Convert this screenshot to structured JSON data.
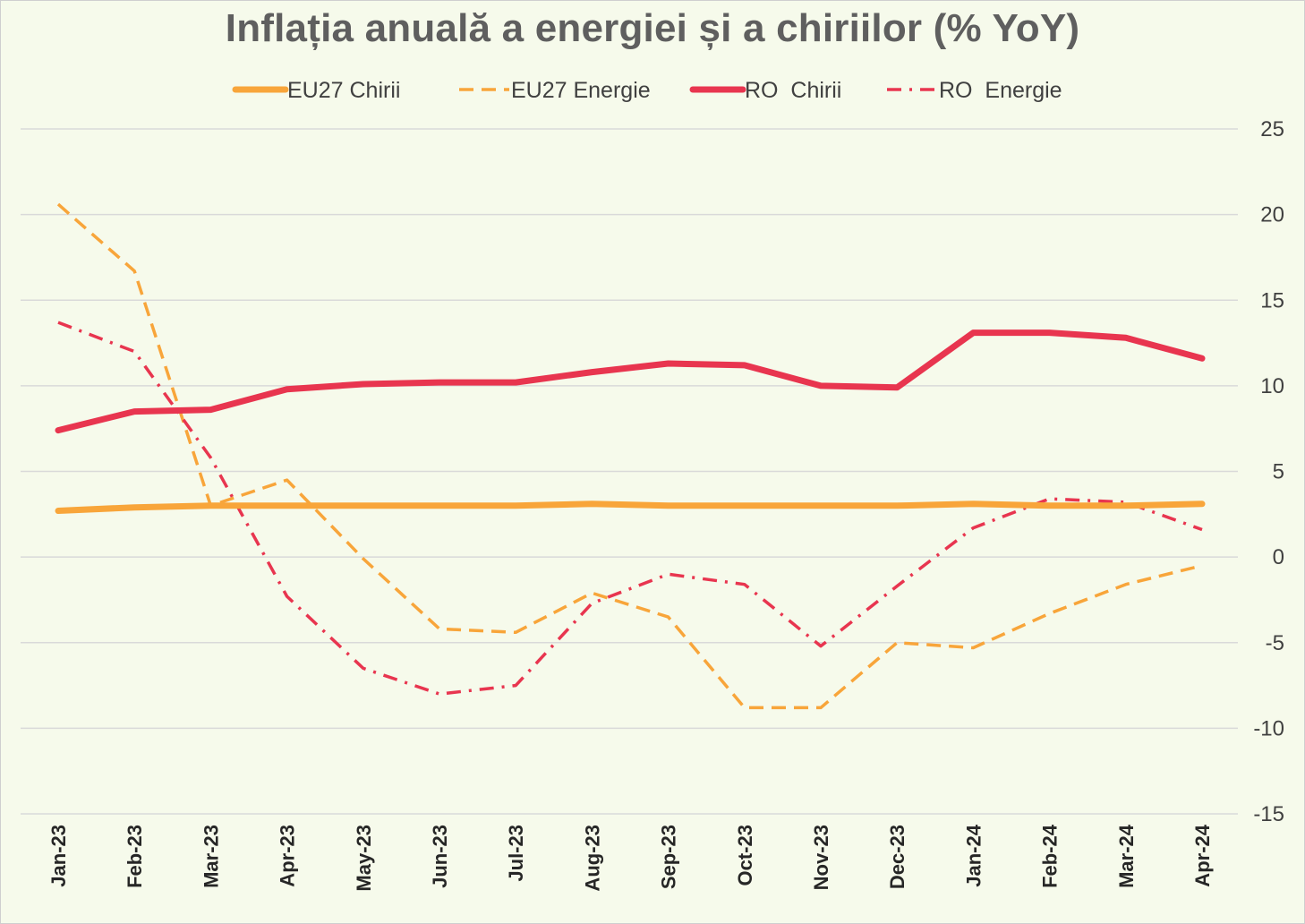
{
  "chart_data": {
    "type": "line",
    "title": "Inflația anuală a energiei și a chiriilor (% YoY)",
    "categories": [
      "Jan-23",
      "Feb-23",
      "Mar-23",
      "Apr-23",
      "May-23",
      "Jun-23",
      "Jul-23",
      "Aug-23",
      "Sep-23",
      "Oct-23",
      "Nov-23",
      "Dec-23",
      "Jan-24",
      "Feb-24",
      "Mar-24",
      "Apr-24"
    ],
    "ylim": [
      -15,
      25
    ],
    "yticks": [
      25,
      20,
      15,
      10,
      5,
      0,
      -5,
      -10,
      -15
    ],
    "y_axis_side": "right",
    "grid": "horizontal",
    "legend_position": "top",
    "series": [
      {
        "name": "EU27 Chirii",
        "color": "#f8a53a",
        "style": "solid-thick",
        "values": [
          2.7,
          2.9,
          3.0,
          3.0,
          3.0,
          3.0,
          3.0,
          3.1,
          3.0,
          3.0,
          3.0,
          3.0,
          3.1,
          3.0,
          3.0,
          3.1
        ]
      },
      {
        "name": "EU27 Energie",
        "color": "#f8a53a",
        "style": "dashed",
        "values": [
          20.6,
          16.7,
          3.0,
          4.5,
          -0.1,
          -4.2,
          -4.4,
          -2.1,
          -3.5,
          -8.8,
          -8.8,
          -5.0,
          -5.3,
          -3.3,
          -1.6,
          -0.5
        ]
      },
      {
        "name": "RO  Chirii",
        "color": "#e8354f",
        "style": "solid-thick",
        "values": [
          7.4,
          8.5,
          8.6,
          9.8,
          10.1,
          10.2,
          10.2,
          10.8,
          11.3,
          11.2,
          10.0,
          9.9,
          13.1,
          13.1,
          12.8,
          11.6
        ]
      },
      {
        "name": "RO  Energie",
        "color": "#e8354f",
        "style": "dash-dot",
        "values": [
          13.7,
          12.0,
          5.8,
          -2.3,
          -6.5,
          -8.0,
          -7.5,
          -2.7,
          -1.0,
          -1.6,
          -5.2,
          -1.7,
          1.7,
          3.4,
          3.2,
          1.6
        ]
      }
    ]
  }
}
